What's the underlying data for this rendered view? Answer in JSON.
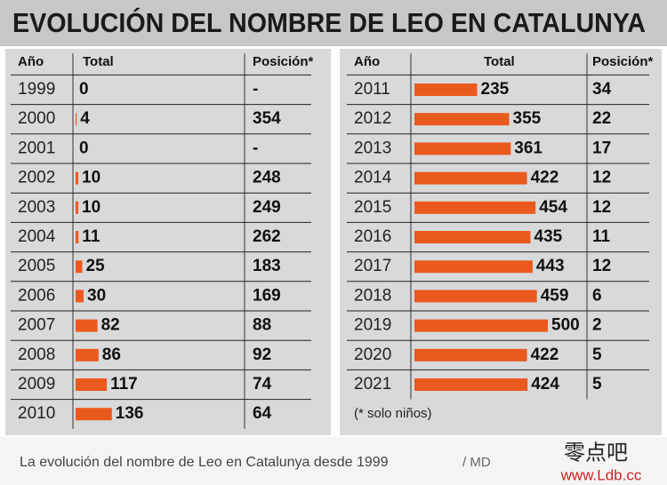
{
  "title": "EVOLUCIÓN DEL NOMBRE DE LEO EN CATALUNYA",
  "headers": [
    "Año",
    "Total",
    "Posición*"
  ],
  "tables": [
    {
      "rows": [
        [
          "1999",
          0,
          "-"
        ],
        [
          "2000",
          4,
          354
        ],
        [
          "2001",
          0,
          "-"
        ],
        [
          "2002",
          10,
          248
        ],
        [
          "2003",
          10,
          249
        ],
        [
          "2004",
          11,
          262
        ],
        [
          "2005",
          25,
          183
        ],
        [
          "2006",
          30,
          169
        ],
        [
          "2007",
          82,
          88
        ],
        [
          "2008",
          86,
          92
        ],
        [
          "2009",
          117,
          74
        ],
        [
          "2010",
          136,
          64
        ]
      ]
    },
    {
      "rows": [
        [
          "2011",
          235,
          34
        ],
        [
          "2012",
          355,
          22
        ],
        [
          "2013",
          361,
          17
        ],
        [
          "2014",
          422,
          12
        ],
        [
          "2015",
          454,
          12
        ],
        [
          "2016",
          435,
          11
        ],
        [
          "2017",
          443,
          12
        ],
        [
          "2018",
          459,
          6
        ],
        [
          "2019",
          500,
          2
        ],
        [
          "2020",
          422,
          5
        ],
        [
          "2021",
          424,
          5
        ]
      ],
      "note": "(* solo niños)"
    }
  ],
  "caption": "La evolución del nombre de Leo en Catalunya desde 1999",
  "credit": "/ MD",
  "watermark": {
    "name": "零点吧",
    "url": "www.Ldb.cc"
  }
}
